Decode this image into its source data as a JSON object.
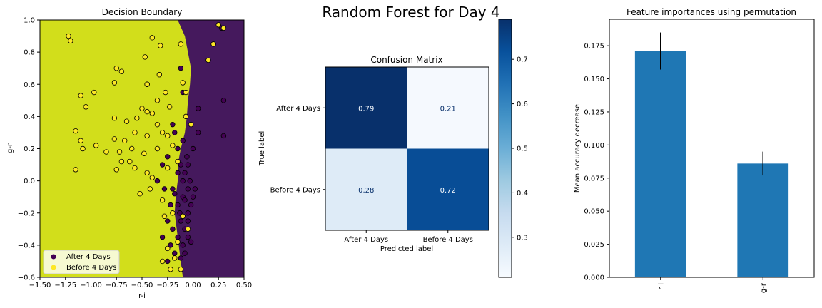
{
  "suptitle": "Random Forest for Day 4",
  "chart_data": [
    {
      "type": "scatter",
      "title": "Decision Boundary",
      "xlabel": "r-i",
      "ylabel": "g-r",
      "xlim": [
        -1.5,
        0.5
      ],
      "ylim": [
        -0.6,
        1.0
      ],
      "xticks": [
        "−1.50",
        "−1.25",
        "−1.00",
        "−0.75",
        "−0.50",
        "−0.25",
        "0.00",
        "0.25",
        "0.50"
      ],
      "xtick_values": [
        -1.5,
        -1.25,
        -1.0,
        -0.75,
        -0.5,
        -0.25,
        0.0,
        0.25,
        0.5
      ],
      "yticks": [
        "−0.6",
        "−0.4",
        "−0.2",
        "0.0",
        "0.2",
        "0.4",
        "0.6",
        "0.8",
        "1.0"
      ],
      "ytick_values": [
        -0.6,
        -0.4,
        -0.2,
        0.0,
        0.2,
        0.4,
        0.6,
        0.8,
        1.0
      ],
      "regions": {
        "before_color": "#d2de1b",
        "after_color": "#45195d",
        "boundary": [
          [
            -0.15,
            1.0
          ],
          [
            -0.08,
            0.9
          ],
          [
            -0.05,
            0.8
          ],
          [
            -0.02,
            0.7
          ],
          [
            -0.03,
            0.6
          ],
          [
            -0.05,
            0.5
          ],
          [
            -0.06,
            0.4
          ],
          [
            -0.08,
            0.3
          ],
          [
            -0.12,
            0.2
          ],
          [
            -0.15,
            0.1
          ],
          [
            -0.15,
            0.0
          ],
          [
            -0.17,
            -0.1
          ],
          [
            -0.18,
            -0.2
          ],
          [
            -0.16,
            -0.3
          ],
          [
            -0.14,
            -0.4
          ],
          [
            -0.12,
            -0.5
          ],
          [
            -0.1,
            -0.6
          ]
        ]
      },
      "series": [
        {
          "name": "After 4 Days",
          "color": "#440154",
          "points": [
            [
              -0.1,
              0.55
            ],
            [
              -0.2,
              0.35
            ],
            [
              -0.15,
              0.2
            ],
            [
              -0.12,
              0.1
            ],
            [
              -0.08,
              0.05
            ],
            [
              -0.05,
              -0.05
            ],
            [
              -0.1,
              -0.1
            ],
            [
              -0.15,
              -0.15
            ],
            [
              -0.05,
              -0.2
            ],
            [
              -0.12,
              -0.25
            ],
            [
              -0.2,
              -0.3
            ],
            [
              -0.08,
              -0.3
            ],
            [
              -0.15,
              -0.35
            ],
            [
              -0.1,
              -0.4
            ],
            [
              -0.05,
              -0.35
            ],
            [
              -0.18,
              -0.45
            ],
            [
              -0.22,
              -0.4
            ],
            [
              -0.12,
              -0.48
            ],
            [
              -0.25,
              -0.5
            ],
            [
              -0.02,
              -0.15
            ],
            [
              0.0,
              -0.1
            ],
            [
              -0.03,
              0.0
            ],
            [
              -0.06,
              0.15
            ],
            [
              -0.1,
              0.25
            ],
            [
              -0.18,
              0.3
            ],
            [
              -0.3,
              0.1
            ],
            [
              -0.28,
              -0.05
            ],
            [
              -0.22,
              -0.15
            ],
            [
              -0.25,
              -0.25
            ],
            [
              -0.3,
              -0.35
            ],
            [
              -0.05,
              -0.25
            ],
            [
              0.02,
              -0.05
            ],
            [
              -0.15,
              0.05
            ],
            [
              -0.2,
              -0.05
            ],
            [
              -0.08,
              -0.45
            ],
            [
              -0.35,
              0.0
            ],
            [
              0.05,
              0.45
            ],
            [
              0.3,
              0.5
            ],
            [
              0.3,
              0.28
            ],
            [
              0.28,
              0.95
            ],
            [
              -0.45,
              0.6
            ],
            [
              0.05,
              0.3
            ],
            [
              -0.12,
              0.7
            ],
            [
              -0.08,
              -0.12
            ],
            [
              -0.1,
              0.0
            ],
            [
              -0.13,
              -0.2
            ],
            [
              -0.18,
              -0.08
            ],
            [
              -0.05,
              0.1
            ],
            [
              -0.25,
              0.15
            ],
            [
              -0.02,
              -0.38
            ],
            [
              0.0,
              0.2
            ]
          ]
        },
        {
          "name": "Before 4 Days",
          "color": "#fde725",
          "points": [
            [
              -1.22,
              0.9
            ],
            [
              -1.2,
              0.87
            ],
            [
              -0.4,
              0.89
            ],
            [
              -0.32,
              0.84
            ],
            [
              -0.12,
              0.85
            ],
            [
              -0.47,
              0.77
            ],
            [
              -0.75,
              0.7
            ],
            [
              -0.7,
              0.68
            ],
            [
              -0.45,
              0.6
            ],
            [
              -0.77,
              0.61
            ],
            [
              -0.33,
              0.66
            ],
            [
              -1.1,
              0.53
            ],
            [
              -0.97,
              0.55
            ],
            [
              -1.05,
              0.46
            ],
            [
              -0.27,
              0.55
            ],
            [
              -0.35,
              0.5
            ],
            [
              -0.23,
              0.46
            ],
            [
              -0.77,
              0.39
            ],
            [
              -0.65,
              0.37
            ],
            [
              -0.55,
              0.39
            ],
            [
              -0.5,
              0.45
            ],
            [
              -0.45,
              0.43
            ],
            [
              -0.4,
              0.42
            ],
            [
              -0.35,
              0.35
            ],
            [
              -0.3,
              0.3
            ],
            [
              -0.25,
              0.28
            ],
            [
              -1.15,
              0.31
            ],
            [
              -1.1,
              0.25
            ],
            [
              -0.77,
              0.26
            ],
            [
              -0.67,
              0.25
            ],
            [
              -0.57,
              0.3
            ],
            [
              -0.45,
              0.28
            ],
            [
              -1.08,
              0.2
            ],
            [
              -0.95,
              0.22
            ],
            [
              -0.85,
              0.18
            ],
            [
              -0.72,
              0.18
            ],
            [
              -0.6,
              0.2
            ],
            [
              -0.48,
              0.17
            ],
            [
              -1.15,
              0.07
            ],
            [
              -0.75,
              0.07
            ],
            [
              -0.7,
              0.12
            ],
            [
              -0.62,
              0.12
            ],
            [
              -0.57,
              0.08
            ],
            [
              -0.45,
              0.05
            ],
            [
              -0.4,
              0.02
            ],
            [
              -0.52,
              -0.08
            ],
            [
              -0.42,
              -0.05
            ],
            [
              -0.3,
              -0.12
            ],
            [
              -0.28,
              -0.22
            ],
            [
              -0.2,
              -0.2
            ],
            [
              -0.25,
              -0.42
            ],
            [
              -0.15,
              -0.38
            ],
            [
              -0.1,
              -0.22
            ],
            [
              -0.05,
              -0.3
            ],
            [
              -0.1,
              0.61
            ],
            [
              -0.07,
              0.55
            ],
            [
              0.15,
              0.75
            ],
            [
              0.2,
              0.85
            ],
            [
              0.3,
              0.95
            ],
            [
              0.25,
              0.97
            ],
            [
              -0.25,
              0.08
            ],
            [
              -0.2,
              0.22
            ],
            [
              -0.35,
              0.2
            ],
            [
              -0.15,
              0.12
            ],
            [
              -0.18,
              -0.48
            ],
            [
              -0.12,
              -0.55
            ],
            [
              -0.22,
              -0.55
            ],
            [
              -0.07,
              0.4
            ],
            [
              -0.3,
              -0.5
            ],
            [
              -0.02,
              0.35
            ]
          ]
        }
      ],
      "legend": {
        "placement": "lower-left",
        "entries": [
          "After 4 Days",
          "Before 4 Days"
        ]
      }
    },
    {
      "type": "heatmap",
      "title": "Confusion Matrix",
      "xlabel": "Predicted label",
      "ylabel": "True label",
      "x_categories": [
        "After 4 Days",
        "Before 4 Days"
      ],
      "y_categories": [
        "After 4 Days",
        "Before 4 Days"
      ],
      "values": [
        [
          0.79,
          0.21
        ],
        [
          0.28,
          0.72
        ]
      ],
      "value_labels": [
        [
          "0.79",
          "0.21"
        ],
        [
          "0.28",
          "0.72"
        ]
      ],
      "cell_colors": [
        [
          "#08306b",
          "#f5f9fe"
        ],
        [
          "#deebf7",
          "#084d96"
        ]
      ],
      "text_colors": [
        [
          "#f7fbff",
          "#08306b"
        ],
        [
          "#08306b",
          "#f7fbff"
        ]
      ],
      "colorbar": {
        "range": [
          0.21,
          0.79
        ],
        "ticks": [
          "0.3",
          "0.4",
          "0.5",
          "0.6",
          "0.7"
        ],
        "tick_values": [
          0.3,
          0.4,
          0.5,
          0.6,
          0.7
        ],
        "colors": [
          "#f7fbff",
          "#deebf7",
          "#c6dbef",
          "#9ecae1",
          "#6baed6",
          "#4292c6",
          "#2171b5",
          "#08519c",
          "#08306b"
        ]
      }
    },
    {
      "type": "bar",
      "title": "Feature importances using permutation",
      "ylabel": "Mean accuracy decrease",
      "categories": [
        "r-i",
        "g-r"
      ],
      "values": [
        0.171,
        0.086
      ],
      "errors": [
        0.014,
        0.009
      ],
      "ylim": [
        0,
        0.195
      ],
      "yticks": [
        "0.000",
        "0.025",
        "0.050",
        "0.075",
        "0.100",
        "0.125",
        "0.150",
        "0.175"
      ],
      "ytick_values": [
        0,
        0.025,
        0.05,
        0.075,
        0.1,
        0.125,
        0.15,
        0.175
      ],
      "color": "#1f77b4"
    }
  ]
}
